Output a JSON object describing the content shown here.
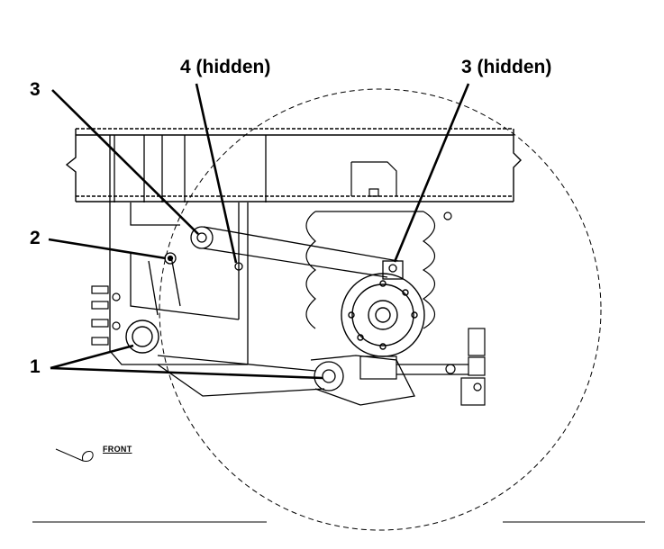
{
  "diagram": {
    "description_labels": {
      "front_arrow": "FRONT"
    },
    "callouts": [
      {
        "id": "callout-3-left",
        "label": "3"
      },
      {
        "id": "callout-4-hidden",
        "label": "4 (hidden)"
      },
      {
        "id": "callout-3-hidden",
        "label": "3 (hidden)"
      },
      {
        "id": "callout-2",
        "label": "2"
      },
      {
        "id": "callout-1",
        "label": "1"
      }
    ],
    "stroke_color": "#000000",
    "background_color": "#ffffff"
  }
}
